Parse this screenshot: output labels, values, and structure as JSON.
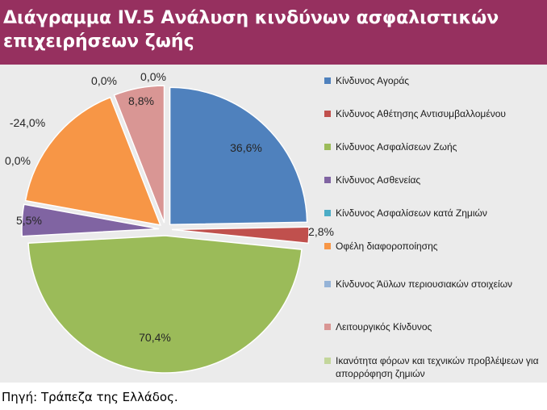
{
  "header": {
    "title": "Διάγραμμα IV.5 Ανάλυση κινδύνων ασφαλιστικών επιχειρήσεων ζωής"
  },
  "chart_data": {
    "type": "pie",
    "title": "Διάγραμμα IV.5 Ανάλυση κινδύνων ασφαλιστικών επιχειρήσεων ζωής",
    "legend_position": "right",
    "slices": [
      {
        "name": "Κίνδυνος Αγοράς",
        "value": 36.6,
        "label": "36,6%",
        "color": "#4f81bd"
      },
      {
        "name": "Κίνδυνος Αθέτησης Αντισυμβαλλομένου",
        "value": 2.8,
        "label": "2,8%",
        "color": "#c0504d"
      },
      {
        "name": "Κίνδυνος Ασφαλίσεων Ζωής",
        "value": 70.4,
        "label": "70,4%",
        "color": "#9bbb59"
      },
      {
        "name": "Κίνδυνος Ασθενείας",
        "value": 5.5,
        "label": "5,5%",
        "color": "#8064a2"
      },
      {
        "name": "Κίνδυνος Ασφαλίσεων κατά Ζημιών",
        "value": 0.0,
        "label": "0,0%",
        "color": "#4bacc6"
      },
      {
        "name": "Οφέλη διαφοροποίησης",
        "value": -24.0,
        "label": "-24,0%",
        "color": "#f79646"
      },
      {
        "name": "Κίνδυνος Άϋλων περιουσιακών στοιχείων",
        "value": 0.0,
        "label": "0,0%",
        "color": "#95b3d7"
      },
      {
        "name": "Λειτουργικός Κίνδυνος",
        "value": 8.8,
        "label": "8,8%",
        "color": "#d99694"
      },
      {
        "name": "Ικανότητα φόρων και τεχνικών προβλέψεων για απορρόφηση ζημιών",
        "value": 0.0,
        "label": "0,0%",
        "color": "#c3d69b"
      }
    ]
  },
  "legend": {
    "items": [
      {
        "label": "Κίνδυνος Αγοράς",
        "color": "#4f81bd"
      },
      {
        "label": "Κίνδυνος Αθέτησης Αντισυμβαλλομένου",
        "color": "#c0504d"
      },
      {
        "label": "Κίνδυνος Ασφαλίσεων Ζωής",
        "color": "#9bbb59"
      },
      {
        "label": "Κίνδυνος Ασθενείας",
        "color": "#8064a2"
      },
      {
        "label": "Κίνδυνος Ασφαλίσεων κατά Ζημιών",
        "color": "#4bacc6"
      },
      {
        "label": "Οφέλη διαφοροποίησης",
        "color": "#f79646"
      },
      {
        "label": "Κίνδυνος Άϋλων περιουσιακών στοιχείων",
        "color": "#95b3d7"
      },
      {
        "label": "Λειτουργικός Κίνδυνος",
        "color": "#d99694"
      },
      {
        "label": "Ικανότητα φόρων και τεχνικών προβλέψεων για απορρόφηση ζημιών",
        "color": "#c3d69b"
      }
    ]
  },
  "footer": {
    "source": "Πηγή: Τράπεζα της Ελλάδος."
  }
}
